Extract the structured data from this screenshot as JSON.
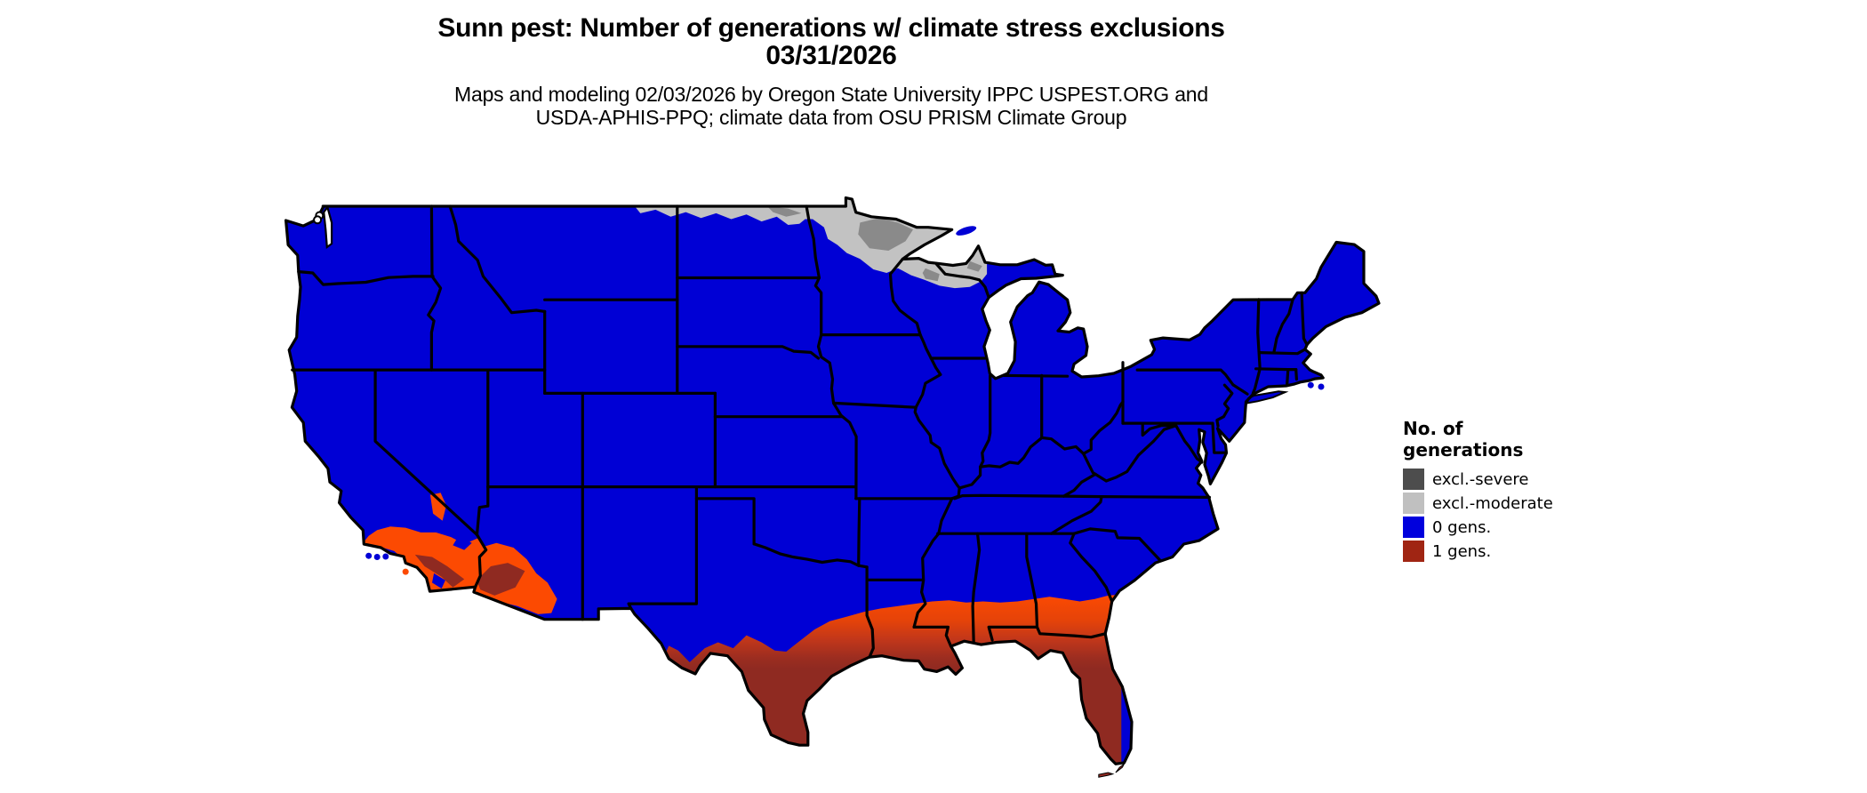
{
  "title": {
    "line1": "Sunn pest: Number of generations w/ climate stress exclusions",
    "line2": "03/31/2026"
  },
  "subtitle": {
    "line1": "Maps and modeling 02/03/2026 by Oregon State University IPPC USPEST.ORG and",
    "line2": "USDA-APHIS-PPQ; climate data from OSU PRISM Climate Group"
  },
  "legend": {
    "title_line1": "No. of",
    "title_line2": "generations",
    "items": [
      {
        "label": "excl.-severe",
        "color": "#4D4D4D"
      },
      {
        "label": "excl.-moderate",
        "color": "#C0C0C0"
      },
      {
        "label": "0 gens.",
        "color": "#0000DD"
      },
      {
        "label": "1 gens.",
        "color": "#A02513"
      }
    ]
  },
  "map": {
    "colors": {
      "ocean": "#FFFFFF",
      "zero_gens_blue": "#0000D5",
      "excl_moderate": "#C2C2C2",
      "excl_severe": "#8A8A8A",
      "border": "#000000",
      "orange": "#FC4A02",
      "dark_red": "#8F2A21",
      "band_stops": [
        "#FC4A02",
        "#E54309",
        "#C2371A",
        "#9C2D20",
        "#8F2A21"
      ]
    }
  }
}
